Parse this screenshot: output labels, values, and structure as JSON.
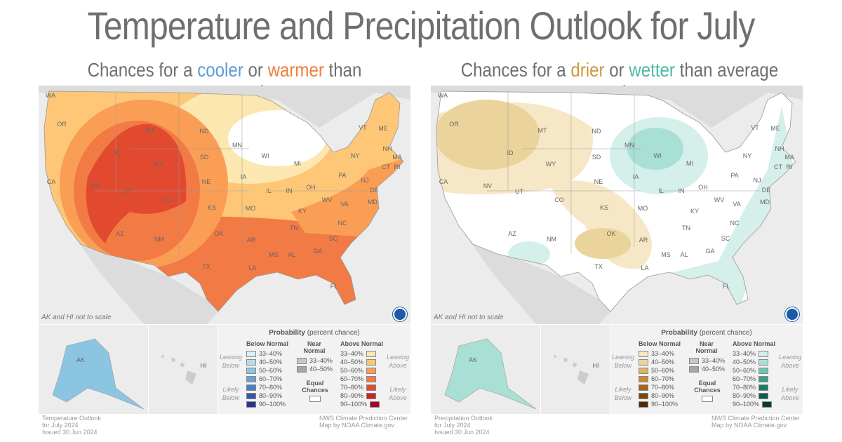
{
  "title": "Temperature and Precipitation Outlook for July",
  "temperature": {
    "subtitle": {
      "pre": "Chances for a ",
      "cool": "cooler",
      "mid": " or ",
      "warm": "warmer",
      "post": " than average July"
    },
    "accent_cool": "#5b9bd5",
    "accent_warm": "#f07f3c",
    "note": "AK and HI not to scale",
    "inset_labels": {
      "ak": "AK",
      "hi": "HI"
    },
    "legend": {
      "title_bold": "Probability",
      "title_rest": " (percent chance)",
      "below_header": "Below Normal",
      "near_header": "Near Normal",
      "above_header": "Above Normal",
      "leaning_below": "Leaning Below",
      "likely_below": "Likely Below",
      "leaning_above": "Leaning Above",
      "likely_above": "Likely Above",
      "equal_chances": "Equal Chances",
      "below": [
        {
          "label": "33–40%",
          "color": "#ddf1f8"
        },
        {
          "label": "40–50%",
          "color": "#b4dcee"
        },
        {
          "label": "50–60%",
          "color": "#8cc5e2"
        },
        {
          "label": "60–70%",
          "color": "#6aa3d3"
        },
        {
          "label": "70–80%",
          "color": "#4a7fc2"
        },
        {
          "label": "80–90%",
          "color": "#3657a8"
        },
        {
          "label": "90–100%",
          "color": "#2a3192"
        }
      ],
      "near": [
        {
          "label": "33–40%",
          "color": "#c8c8c8"
        },
        {
          "label": "40–50%",
          "color": "#a6a6a6"
        }
      ],
      "above": [
        {
          "label": "33–40%",
          "color": "#fde7b0"
        },
        {
          "label": "40–50%",
          "color": "#fdc777"
        },
        {
          "label": "50–60%",
          "color": "#fa9e55"
        },
        {
          "label": "60–70%",
          "color": "#f27a44"
        },
        {
          "label": "70–80%",
          "color": "#e24a30"
        },
        {
          "label": "80–90%",
          "color": "#cc2127"
        },
        {
          "label": "90–100%",
          "color": "#a50026"
        }
      ]
    },
    "footer_left": [
      "Temperature Outlook",
      "for July 2024",
      "Issued 30 Jun 2024"
    ],
    "footer_right": [
      "NWS Climate Prediction Center",
      "Map by NOAA Climate.gov"
    ]
  },
  "precipitation": {
    "subtitle": {
      "pre": "Chances for a ",
      "dry": "drier",
      "mid": " or ",
      "wet": "wetter",
      "post": " than average July"
    },
    "accent_dry": "#c99a3f",
    "accent_wet": "#4bb8a5",
    "note": "AK and HI not to scale",
    "inset_labels": {
      "ak": "AK",
      "hi": "HI"
    },
    "legend": {
      "title_bold": "Probability",
      "title_rest": " (percent chance)",
      "below_header": "Below Normal",
      "near_header": "Near Normal",
      "above_header": "Above Normal",
      "leaning_below": "Leaning Below",
      "likely_below": "Likely Below",
      "leaning_above": "Leaning Above",
      "likely_above": "Likely Above",
      "equal_chances": "Equal Chances",
      "below": [
        {
          "label": "33–40%",
          "color": "#f6e8c6"
        },
        {
          "label": "40–50%",
          "color": "#ebd39c"
        },
        {
          "label": "50–60%",
          "color": "#deb36c"
        },
        {
          "label": "60–70%",
          "color": "#c88a37"
        },
        {
          "label": "70–80%",
          "color": "#a5651b"
        },
        {
          "label": "80–90%",
          "color": "#7a4510"
        },
        {
          "label": "90–100%",
          "color": "#4f2b07"
        }
      ],
      "near": [
        {
          "label": "33–40%",
          "color": "#c8c8c8"
        },
        {
          "label": "40–50%",
          "color": "#a6a6a6"
        }
      ],
      "above": [
        {
          "label": "33–40%",
          "color": "#d5efea"
        },
        {
          "label": "40–50%",
          "color": "#a9e0d6"
        },
        {
          "label": "50–60%",
          "color": "#6fc5b5"
        },
        {
          "label": "60–70%",
          "color": "#3e9c8f"
        },
        {
          "label": "70–80%",
          "color": "#1c7a6d"
        },
        {
          "label": "80–90%",
          "color": "#0d5c4f"
        },
        {
          "label": "90–100%",
          "color": "#063d33"
        }
      ]
    },
    "footer_left": [
      "Precipitation Outlook",
      "for July 2024",
      "Issued 30 Jun 2024"
    ],
    "footer_right": [
      "NWS Climate Prediction Center",
      "Map by NOAA Climate.gov"
    ]
  },
  "states": [
    "WA",
    "OR",
    "CA",
    "NV",
    "ID",
    "UT",
    "AZ",
    "MT",
    "WY",
    "CO",
    "NM",
    "ND",
    "SD",
    "NE",
    "KS",
    "OK",
    "TX",
    "MN",
    "IA",
    "MO",
    "AR",
    "LA",
    "WI",
    "IL",
    "MS",
    "MI",
    "IN",
    "KY",
    "TN",
    "AL",
    "GA",
    "FL",
    "OH",
    "WV",
    "VA",
    "NC",
    "SC",
    "PA",
    "NY",
    "VT",
    "ME",
    "NH",
    "MA",
    "CT",
    "RI",
    "NJ",
    "DE",
    "MD"
  ]
}
